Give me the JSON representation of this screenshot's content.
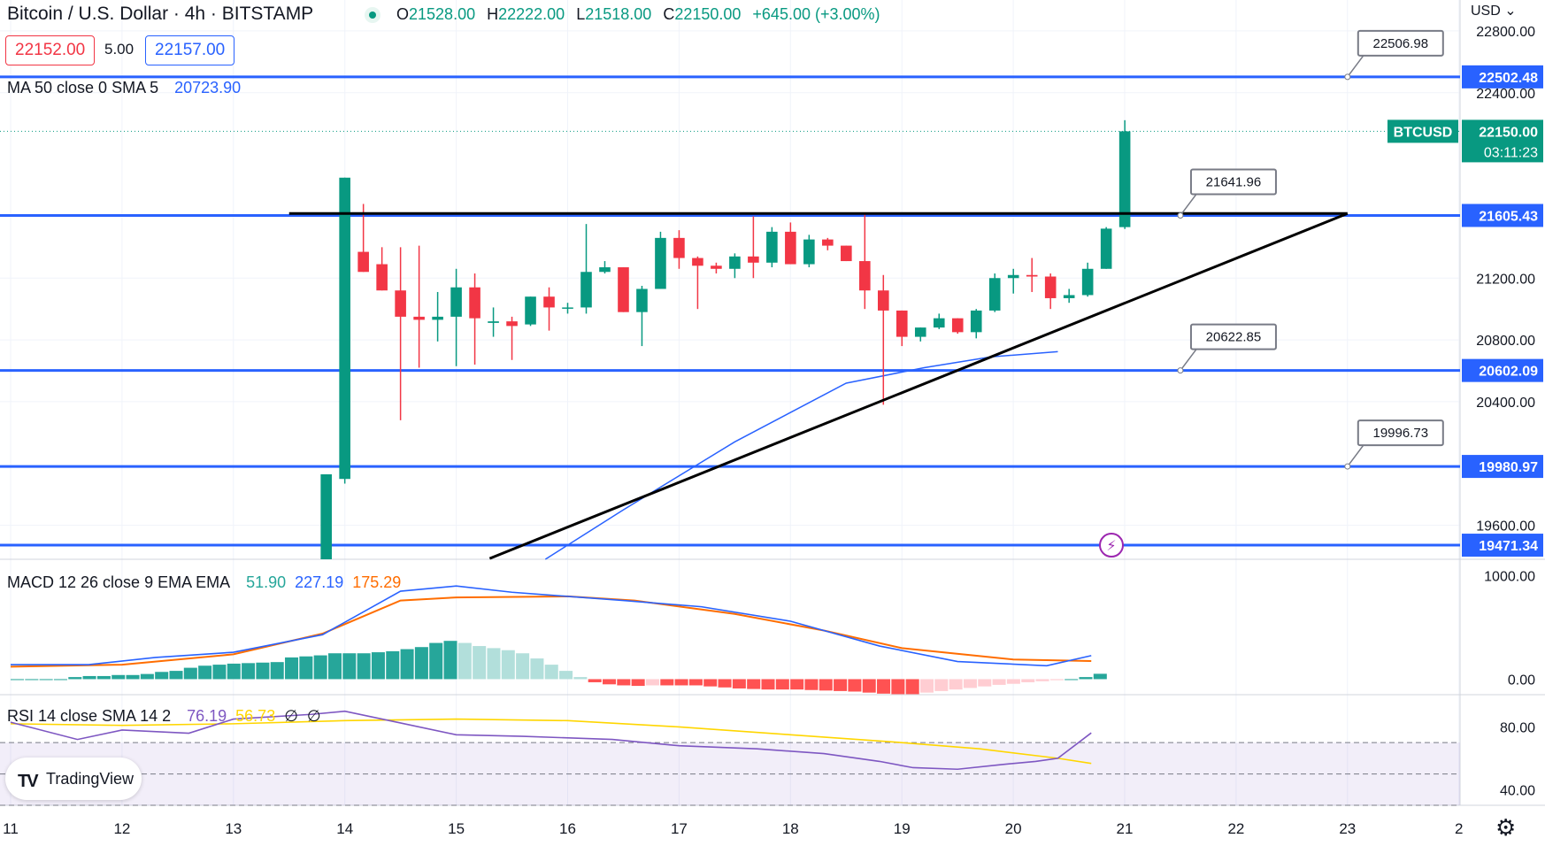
{
  "header": {
    "symbol_title": "Bitcoin / U.S. Dollar · 4h · BITSTAMP",
    "ohlc": [
      {
        "key": "O",
        "value": "21528.00"
      },
      {
        "key": "H",
        "value": "22222.00"
      },
      {
        "key": "L",
        "value": "21518.00"
      },
      {
        "key": "C",
        "value": "22150.00"
      },
      {
        "key": "",
        "value": "+645.00 (+3.00%)"
      }
    ],
    "bid": "22152.00",
    "spread": "5.00",
    "ask": "22157.00",
    "currency": "USD",
    "currency_icon": "chevron-down-icon"
  },
  "indicators": {
    "ma_label": "MA 50 close 0 SMA 5",
    "ma_value": "20723.90",
    "macd_label": "MACD 12 26 close 9 EMA EMA",
    "macd_hist": "51.90",
    "macd_macd": "227.19",
    "macd_signal": "175.29",
    "rsi_label": "RSI 14 close SMA 14 2",
    "rsi_value": "76.19",
    "rsi_ma": "56.73",
    "rsi_na1": "∅",
    "rsi_na2": "∅"
  },
  "branding": {
    "logo_mark": "TV",
    "logo_text": "TradingView"
  },
  "colors": {
    "up": "#089981",
    "down": "#f23645",
    "level": "#2962ff",
    "ma": "#2962ff",
    "macd": "#2962ff",
    "signal": "#ff6d00",
    "rsi": "#7e57c2",
    "rsi_ma": "#ffd600"
  },
  "chart_data": {
    "type": "candlestick",
    "ylim": [
      19380,
      23000
    ],
    "x_ticks": [
      "11",
      "12",
      "13",
      "14",
      "15",
      "16",
      "17",
      "18",
      "19",
      "20",
      "21",
      "22",
      "23",
      "2"
    ],
    "y_ticks": [
      "22800.00",
      "22400.00",
      "21200.00",
      "20800.00",
      "20400.00",
      "19600.00"
    ],
    "current_price": {
      "symbol": "BTCUSD",
      "value": "22150.00",
      "countdown": "03:11:23"
    },
    "horizontal_levels": [
      {
        "value": 22502.48,
        "label": "22502.48",
        "callout": "22506.98",
        "callout_day": 23.0
      },
      {
        "value": 21605.43,
        "label": "21605.43",
        "callout": "21641.96",
        "callout_day": 21.5
      },
      {
        "value": 20602.09,
        "label": "20602.09",
        "callout": "20622.85",
        "callout_day": 21.5
      },
      {
        "value": 19980.97,
        "label": "19980.97",
        "callout": "19996.73",
        "callout_day": 23.0
      },
      {
        "value": 19471.34,
        "label": "19471.34"
      }
    ],
    "trendlines": [
      {
        "from": [
          13.5,
          21618
        ],
        "to": [
          23.0,
          21618
        ]
      },
      {
        "from": [
          15.3,
          19385
        ],
        "to": [
          23.0,
          21618
        ]
      }
    ],
    "candles_start_day": 13.833,
    "candles_step_day": 0.1667,
    "candles": [
      [
        19380,
        19930,
        19400,
        19900
      ],
      [
        19900,
        21850,
        19870,
        21250
      ],
      [
        21370,
        21240,
        21680,
        21400
      ],
      [
        21290,
        21120,
        21400,
        21240
      ],
      [
        21120,
        20950,
        21400,
        20280
      ],
      [
        20950,
        20930,
        21410,
        20620
      ],
      [
        20930,
        20950,
        21110,
        20790
      ],
      [
        20950,
        21140,
        21260,
        20630
      ],
      [
        21140,
        20940,
        21230,
        20640
      ],
      [
        20910,
        20920,
        21010,
        20820
      ],
      [
        20920,
        20890,
        20950,
        20670
      ],
      [
        20900,
        21080,
        21080,
        20890
      ],
      [
        21080,
        21010,
        21140,
        20860
      ],
      [
        21010,
        21010,
        21040,
        20970
      ],
      [
        21010,
        21240,
        21550,
        20970
      ],
      [
        21240,
        21270,
        21310,
        21230
      ],
      [
        21270,
        20980,
        21270,
        20980
      ],
      [
        20980,
        21130,
        21150,
        20760
      ],
      [
        21130,
        21460,
        21500,
        21130
      ],
      [
        21460,
        21330,
        21510,
        21260
      ],
      [
        21330,
        21280,
        21340,
        21000
      ],
      [
        21280,
        21260,
        21300,
        21230
      ],
      [
        21260,
        21340,
        21360,
        21200
      ],
      [
        21340,
        21300,
        21600,
        21200
      ],
      [
        21300,
        21500,
        21530,
        21270
      ],
      [
        21500,
        21290,
        21560,
        21290
      ],
      [
        21290,
        21450,
        21480,
        21270
      ],
      [
        21450,
        21410,
        21460,
        21380
      ],
      [
        21410,
        21310,
        21410,
        21310
      ],
      [
        21310,
        21120,
        21620,
        21000
      ],
      [
        21120,
        20990,
        21220,
        20380
      ],
      [
        20990,
        20820,
        20980,
        20760
      ],
      [
        20820,
        20880,
        20880,
        20790
      ],
      [
        20880,
        20940,
        20970,
        20870
      ],
      [
        20940,
        20850,
        20940,
        20840
      ],
      [
        20850,
        20990,
        21000,
        20810
      ],
      [
        20990,
        21200,
        21230,
        20980
      ],
      [
        21200,
        21220,
        21260,
        21100
      ],
      [
        21220,
        21210,
        21330,
        21110
      ],
      [
        21210,
        21070,
        21230,
        21000
      ],
      [
        21070,
        21090,
        21130,
        21040
      ],
      [
        21090,
        21260,
        21300,
        21080
      ],
      [
        21260,
        21520,
        21530,
        21260
      ],
      [
        21530,
        22150,
        22222,
        21518
      ]
    ],
    "ma50": [
      [
        15.8,
        19380
      ],
      [
        16.5,
        19700
      ],
      [
        17.5,
        20140
      ],
      [
        18.5,
        20520
      ],
      [
        19.2,
        20620
      ],
      [
        19.8,
        20690
      ],
      [
        20.4,
        20723.9
      ]
    ],
    "macd": {
      "ylim": [
        -150,
        1150
      ],
      "y_ticks": [
        "1000.00",
        "0.00"
      ],
      "histogram": [
        0,
        0,
        0,
        0,
        20,
        30,
        30,
        40,
        40,
        50,
        70,
        80,
        110,
        130,
        140,
        150,
        155,
        160,
        165,
        210,
        220,
        230,
        250,
        250,
        250,
        260,
        270,
        290,
        310,
        350,
        370,
        350,
        320,
        300,
        280,
        250,
        200,
        140,
        80,
        20,
        -30,
        -50,
        -60,
        -65,
        -60,
        -60,
        -60,
        -60,
        -70,
        -80,
        -90,
        -95,
        -100,
        -100,
        -100,
        -105,
        -110,
        -115,
        -120,
        -130,
        -140,
        -145,
        -145,
        -130,
        -115,
        -100,
        -85,
        -70,
        -55,
        -45,
        -30,
        -20,
        -10,
        0,
        20,
        51.9
      ],
      "macd_line": [
        [
          11.0,
          140
        ],
        [
          11.7,
          140
        ],
        [
          12.3,
          210
        ],
        [
          13.0,
          260
        ],
        [
          13.8,
          430
        ],
        [
          14.5,
          850
        ],
        [
          15.0,
          900
        ],
        [
          15.5,
          840
        ],
        [
          16.5,
          760
        ],
        [
          17.2,
          700
        ],
        [
          18.0,
          560
        ],
        [
          18.8,
          320
        ],
        [
          19.5,
          170
        ],
        [
          20.3,
          130
        ],
        [
          20.7,
          227.19
        ]
      ],
      "signal_line": [
        [
          11.0,
          120
        ],
        [
          12.0,
          140
        ],
        [
          13.0,
          240
        ],
        [
          13.8,
          440
        ],
        [
          14.5,
          760
        ],
        [
          15.0,
          790
        ],
        [
          16.0,
          800
        ],
        [
          16.6,
          760
        ],
        [
          17.5,
          630
        ],
        [
          18.3,
          470
        ],
        [
          19.0,
          300
        ],
        [
          20.0,
          190
        ],
        [
          20.7,
          175.29
        ]
      ]
    },
    "rsi": {
      "ylim": [
        30,
        100
      ],
      "y_ticks": [
        "80.00",
        "40.00"
      ],
      "bands": [
        70,
        30
      ],
      "rsi_line": [
        [
          11.0,
          83
        ],
        [
          11.6,
          72
        ],
        [
          12.0,
          78
        ],
        [
          12.6,
          76
        ],
        [
          13.0,
          85
        ],
        [
          13.7,
          88
        ],
        [
          14.0,
          90
        ],
        [
          14.4,
          84
        ],
        [
          15.0,
          75
        ],
        [
          15.6,
          74
        ],
        [
          16.4,
          72
        ],
        [
          17.0,
          68
        ],
        [
          17.7,
          66
        ],
        [
          18.3,
          63
        ],
        [
          18.8,
          58
        ],
        [
          19.1,
          54
        ],
        [
          19.5,
          53
        ],
        [
          19.9,
          56
        ],
        [
          20.2,
          58
        ],
        [
          20.4,
          60
        ],
        [
          20.7,
          76.19
        ]
      ],
      "ma_line": [
        [
          11.0,
          82
        ],
        [
          12.0,
          81
        ],
        [
          13.0,
          82
        ],
        [
          14.0,
          84
        ],
        [
          15.0,
          85
        ],
        [
          16.0,
          84
        ],
        [
          17.0,
          80
        ],
        [
          18.0,
          75
        ],
        [
          19.0,
          70
        ],
        [
          19.7,
          66
        ],
        [
          20.4,
          60
        ],
        [
          20.7,
          56.73
        ]
      ]
    }
  }
}
